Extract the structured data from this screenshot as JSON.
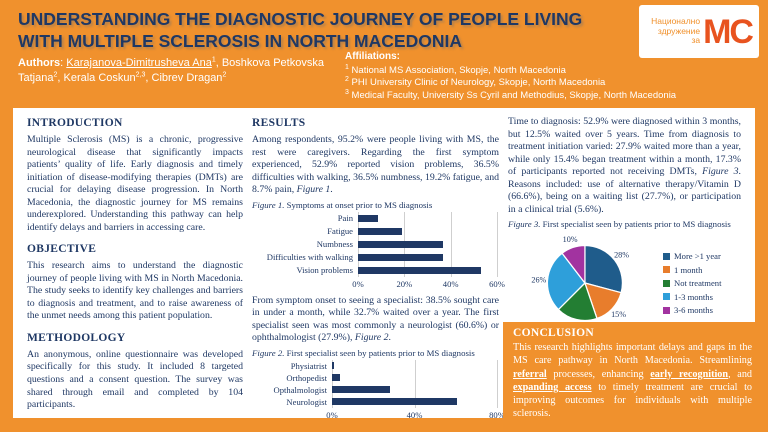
{
  "header": {
    "title": "UNDERSTANDING THE DIAGNOSTIC JOURNEY OF PEOPLE LIVING WITH MULTIPLE SCLEROSIS IN NORTH MACEDONIA",
    "logo": {
      "org_name_lines": [
        "Национално",
        "здружение",
        "за"
      ],
      "initials": "МС"
    },
    "authors": {
      "segments": [
        {
          "text": "Authors",
          "bold": true
        },
        {
          "text": ": "
        },
        {
          "text": "Karajanova-Dimitrusheva Ana",
          "underline": true
        },
        {
          "text": "1",
          "sup": true
        },
        {
          "text": ", Boshkova Petkovska Tatjana"
        },
        {
          "text": "2",
          "sup": true
        },
        {
          "text": ", Kerala Coskun"
        },
        {
          "text": "2,3",
          "sup": true
        },
        {
          "text": ", Cibrev Dragan"
        },
        {
          "text": "2",
          "sup": true
        }
      ]
    },
    "affiliations": {
      "label": "Affiliations:",
      "items": [
        {
          "sup": "1",
          "text": "National MS Association, Skopje, North Macedonia"
        },
        {
          "sup": "2",
          "text": "PHI University Clinic of Neurology, Skopje, North Macedonia"
        },
        {
          "sup": "3",
          "text": "Medical Faculty, University Ss Cyril and Methodius, Skopje, North Macedonia"
        }
      ]
    }
  },
  "sections": {
    "introduction": {
      "heading": "INTRODUCTION",
      "body": "Multiple Sclerosis (MS) is a chronic, progressive neurological disease that significantly impacts patients’ quality of life. Early diagnosis and timely initiation of disease-modifying therapies (DMTs) are crucial for delaying disease progression. In North Macedonia, the diagnostic journey for MS remains underexplored. Understanding this pathway can help identify delays and barriers in accessing care."
    },
    "objective": {
      "heading": "OBJECTIVE",
      "body": "This research aims to understand the diagnostic journey of people living with MS in North Macedonia. The study seeks to identify key challenges and barriers to diagnosis and treatment, and to raise awareness of the unmet needs among this patient population."
    },
    "methodology": {
      "heading": "METHODOLOGY",
      "body": "An anonymous, online questionnaire was developed specifically for this study. It included 8 targeted questions and a consent question. The survey was shared through email and completed by 104 participants."
    },
    "results": {
      "heading": "RESULTS",
      "paragraph1": [
        {
          "text": "Among respondents, 95.2% were people living with MS, the rest were caregivers. Regarding the first symptom experienced, 52.9% reported vision problems, 36.5% difficulties with walking, 36.5% numbness, 19.2% fatigue, and 8.7% pain, "
        },
        {
          "text": "Figure 1",
          "italic": true
        },
        {
          "text": "."
        }
      ],
      "paragraph2": [
        {
          "text": "From symptom onset to seeing a specialist: 38.5% sought care in under a month, while 32.7% waited over a year. The first specialist seen was most commonly a neurologist (60.6%) or ophthalmologist (27.9%), "
        },
        {
          "text": "Figure 2",
          "italic": true
        },
        {
          "text": "."
        }
      ],
      "paragraph3": [
        {
          "text": "Time to diagnosis: 52.9% were diagnosed within 3 months, but 12.5% waited over 5 years. Time from diagnosis to treatment initiation varied: 27.9% waited more than a year, while only 15.4% began treatment within a month, 17.3% of participants reported not receiving DMTs, "
        },
        {
          "text": "Figure 3",
          "italic": true
        },
        {
          "text": ". Reasons included: use of alternative therapy/Vitamin D (66.6%), being on a waiting list (27.7%), or participation in a clinical trial (5.6%)."
        }
      ]
    },
    "conclusion": {
      "heading": "CONCLUSION",
      "body_segments": [
        {
          "text": "This research highlights important delays and gaps in the MS care pathway in North Macedonia. Streamlining "
        },
        {
          "text": "referral",
          "bold": true,
          "underline": true
        },
        {
          "text": " processes, enhancing "
        },
        {
          "text": "early recognition",
          "bold": true,
          "underline": true
        },
        {
          "text": ", and "
        },
        {
          "text": "expanding access",
          "bold": true,
          "underline": true
        },
        {
          "text": " to timely treatment are crucial to improving outcomes for individuals with multiple sclerosis."
        }
      ]
    }
  },
  "figures": {
    "figure1_caption": [
      {
        "text": "Figure 1.",
        "italic": true
      },
      {
        "text": " Symptoms at onset prior to MS diagnosis"
      }
    ],
    "figure2_caption": [
      {
        "text": "Figure 2.",
        "italic": true
      },
      {
        "text": " First specialist seen by patients prior to MS diagnosis"
      }
    ],
    "figure3_caption": [
      {
        "text": "Figure 3.",
        "italic": true
      },
      {
        "text": " First specialist seen by patients prior to MS diagnosis"
      }
    ]
  },
  "chart_data": [
    {
      "id": "figure1",
      "type": "bar",
      "orientation": "horizontal",
      "title": "Figure 1. Symptoms at onset prior to MS diagnosis",
      "categories": [
        "Pain",
        "Fatigue",
        "Numbness",
        "Difficulties with walking",
        "Vision problems"
      ],
      "values": [
        8.7,
        19.2,
        36.5,
        36.5,
        52.9
      ],
      "unit": "%",
      "xlim": [
        0,
        60
      ],
      "ticks": [
        0,
        20,
        40,
        60
      ],
      "tick_labels": [
        "0%",
        "20%",
        "40%",
        "60%"
      ],
      "bar_color": "#1F3864",
      "grid": true
    },
    {
      "id": "figure2",
      "type": "bar",
      "orientation": "horizontal",
      "title": "Figure 2. First specialist seen by patients prior to MS diagnosis",
      "categories": [
        "Physiatrist",
        "Orthopedist",
        "Opthalmologist",
        "Neurologist"
      ],
      "values": [
        1.0,
        3.8,
        27.9,
        60.6
      ],
      "unit": "%",
      "xlim": [
        0,
        80
      ],
      "ticks": [
        0,
        40,
        80
      ],
      "tick_labels": [
        "0%",
        "40%",
        "80%"
      ],
      "bar_color": "#1F3864",
      "grid": true
    },
    {
      "id": "figure3",
      "type": "pie",
      "title": "Figure 3. First specialist seen by patients prior to MS diagnosis",
      "labels": [
        "More >1 year",
        "1 month",
        "Not treatment",
        "1-3 months",
        "3-6 months"
      ],
      "values": [
        28,
        15,
        17,
        26,
        10
      ],
      "data_labels": [
        "28%",
        "15%",
        "17%",
        "26%",
        "10%"
      ],
      "colors": [
        "#1F5C8B",
        "#E87D2C",
        "#237E33",
        "#2E9FDA",
        "#A233A0"
      ],
      "legend_position": "right",
      "start_angle_deg": -90,
      "direction": "clockwise"
    }
  ],
  "colors": {
    "poster_orange": "#F0912D",
    "navy_text": "#1F3864",
    "panel_white": "#FFFFFF",
    "logo_accent": "#E8531F",
    "gridline_gray": "#CFCFCF"
  }
}
